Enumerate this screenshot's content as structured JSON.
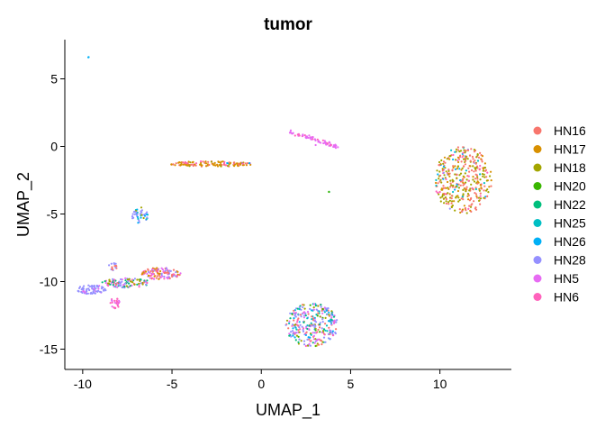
{
  "chart_data": {
    "type": "scatter",
    "title": "tumor",
    "xlabel": "UMAP_1",
    "ylabel": "UMAP_2",
    "xlim": [
      -11,
      14
    ],
    "ylim": [
      -16.5,
      7.9
    ],
    "x_ticks": [
      -10,
      -5,
      0,
      5,
      10
    ],
    "y_ticks": [
      5,
      0,
      -5,
      -10,
      -15
    ],
    "x_tick_labels": [
      "-10",
      "-5",
      "0",
      "5",
      "10"
    ],
    "y_tick_labels": [
      "5",
      "0",
      "-5",
      "-10",
      "-15"
    ],
    "grid": false,
    "legend_position": "right",
    "series": [
      {
        "name": "HN16",
        "color": "#F8766D"
      },
      {
        "name": "HN17",
        "color": "#D89000"
      },
      {
        "name": "HN18",
        "color": "#A3A500"
      },
      {
        "name": "HN20",
        "color": "#39B600"
      },
      {
        "name": "HN22",
        "color": "#00BF7D"
      },
      {
        "name": "HN25",
        "color": "#00BFC4"
      },
      {
        "name": "HN26",
        "color": "#00B0F6"
      },
      {
        "name": "HN28",
        "color": "#9590FF"
      },
      {
        "name": "HN5",
        "color": "#E76BF3"
      },
      {
        "name": "HN6",
        "color": "#FF62BC"
      }
    ],
    "clusters": [
      {
        "cx": -9.7,
        "cy": 6.6,
        "rx": 0.05,
        "ry": 0.05,
        "n": 2,
        "weights": {
          "HN26": 1
        }
      },
      {
        "cx": -2.8,
        "cy": -1.3,
        "rx": 2.3,
        "ry": 0.2,
        "n": 130,
        "weights": {
          "HN17": 3,
          "HN18": 1,
          "HN16": 1,
          "HN6": 1,
          "HN26": 0.3
        }
      },
      {
        "cx": 2.2,
        "cy": 0.8,
        "rx": 1.3,
        "ry": 0.15,
        "n": 70,
        "weights": {
          "HN5": 5,
          "HN6": 1
        },
        "shape": "line",
        "x0": 1.6,
        "y0": 1.1,
        "x1": 4.2,
        "y1": 0.0
      },
      {
        "cx": 3.8,
        "cy": -3.4,
        "rx": 0.05,
        "ry": 0.05,
        "n": 3,
        "weights": {
          "HN20": 1,
          "HN25": 1
        }
      },
      {
        "cx": -6.8,
        "cy": -5.1,
        "rx": 0.45,
        "ry": 0.6,
        "n": 40,
        "weights": {
          "HN28": 2,
          "HN25": 1,
          "HN26": 0.5,
          "HN18": 0.5
        }
      },
      {
        "cx": 11.3,
        "cy": -2.5,
        "rx": 1.6,
        "ry": 2.5,
        "n": 380,
        "weights": {
          "HN16": 4,
          "HN18": 4,
          "HN17": 2,
          "HN25": 0.5,
          "HN26": 0.3,
          "HN28": 0.3,
          "HN6": 0.5
        }
      },
      {
        "cx": 2.8,
        "cy": -13.2,
        "rx": 1.5,
        "ry": 1.6,
        "n": 300,
        "weights": {
          "HN28": 4,
          "HN16": 2,
          "HN25": 1.5,
          "HN18": 1.5,
          "HN5": 1.5,
          "HN6": 1,
          "HN22": 1,
          "HN26": 1,
          "HN20": 0.5
        }
      },
      {
        "cx": -9.5,
        "cy": -10.6,
        "rx": 0.8,
        "ry": 0.35,
        "n": 70,
        "weights": {
          "HN28": 4,
          "HN5": 1
        }
      },
      {
        "cx": -7.6,
        "cy": -10.1,
        "rx": 1.4,
        "ry": 0.35,
        "n": 110,
        "weights": {
          "HN22": 1.5,
          "HN18": 1.5,
          "HN28": 2,
          "HN5": 1,
          "HN6": 1,
          "HN16": 0.5
        }
      },
      {
        "cx": -5.6,
        "cy": -9.4,
        "rx": 1.1,
        "ry": 0.45,
        "n": 120,
        "weights": {
          "HN5": 2,
          "HN16": 2,
          "HN28": 1,
          "HN17": 1,
          "HN6": 1
        }
      },
      {
        "cx": -8.2,
        "cy": -11.6,
        "rx": 0.3,
        "ry": 0.4,
        "n": 25,
        "weights": {
          "HN6": 3,
          "HN5": 1
        }
      },
      {
        "cx": -8.3,
        "cy": -8.9,
        "rx": 0.25,
        "ry": 0.3,
        "n": 15,
        "weights": {
          "HN28": 2,
          "HN16": 1
        }
      }
    ]
  }
}
